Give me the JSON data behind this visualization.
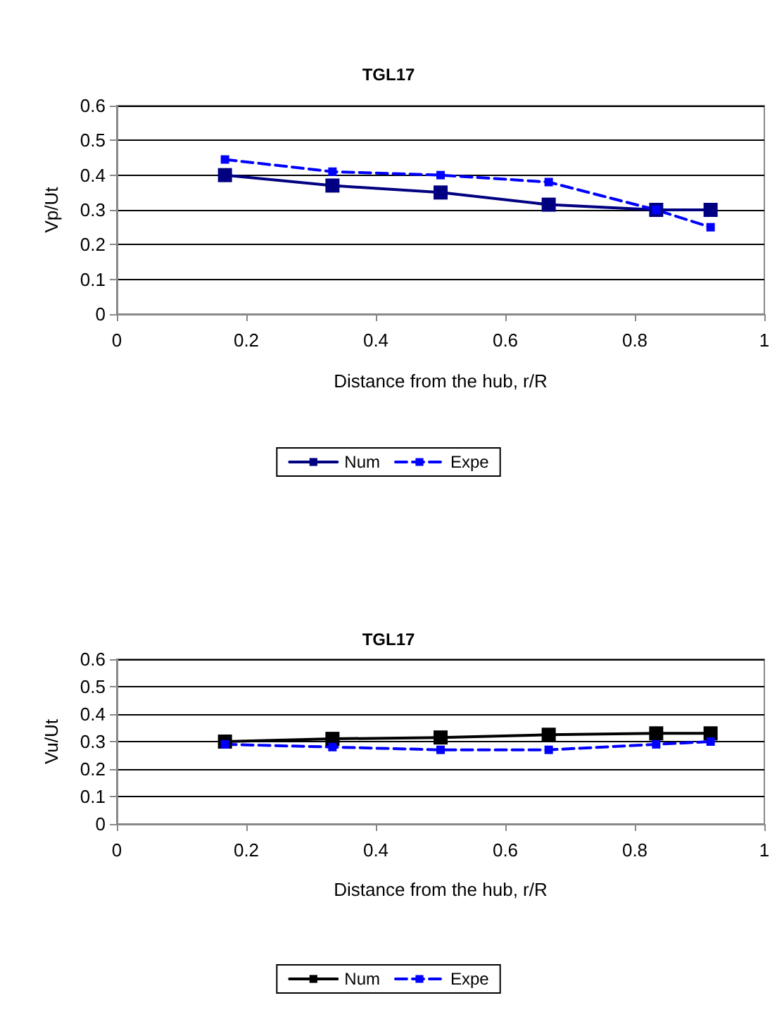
{
  "chart_data": [
    {
      "type": "line",
      "title": "TGL17",
      "xlabel": "Distance from the hub, r/R",
      "ylabel": "Vp/Ut",
      "x": [
        0.167,
        0.333,
        0.5,
        0.667,
        0.833,
        0.917
      ],
      "series": [
        {
          "name": "Num",
          "color": "#000080",
          "values": [
            0.4,
            0.37,
            0.35,
            0.315,
            0.3,
            0.3
          ],
          "line_style": "solid"
        },
        {
          "name": "Expe",
          "color": "#0000ff",
          "values": [
            0.445,
            0.41,
            0.4,
            0.38,
            0.3,
            0.25
          ],
          "line_style": "dashed"
        }
      ],
      "xlim": [
        0,
        1
      ],
      "xticks": [
        0,
        0.2,
        0.4,
        0.6,
        0.8,
        1
      ],
      "ylim": [
        0,
        0.6
      ],
      "yticks": [
        0,
        0.1,
        0.2,
        0.3,
        0.4,
        0.5,
        0.6
      ],
      "grid": "y",
      "legend": "bottom",
      "marker": "square"
    },
    {
      "type": "line",
      "title": "TGL17",
      "xlabel": "Distance from the hub, r/R",
      "ylabel": "Vu/Ut",
      "x": [
        0.167,
        0.333,
        0.5,
        0.667,
        0.833,
        0.917
      ],
      "series": [
        {
          "name": "Num",
          "color": "#000000",
          "values": [
            0.3,
            0.31,
            0.315,
            0.325,
            0.33,
            0.33
          ],
          "line_style": "solid"
        },
        {
          "name": "Expe",
          "color": "#0000ff",
          "values": [
            0.29,
            0.28,
            0.27,
            0.27,
            0.29,
            0.3
          ],
          "line_style": "dashed"
        }
      ],
      "xlim": [
        0,
        1
      ],
      "xticks": [
        0,
        0.2,
        0.4,
        0.6,
        0.8,
        1
      ],
      "ylim": [
        0,
        0.6
      ],
      "yticks": [
        0,
        0.1,
        0.2,
        0.3,
        0.4,
        0.5,
        0.6
      ],
      "grid": "y",
      "legend": "bottom",
      "marker": "square"
    }
  ]
}
